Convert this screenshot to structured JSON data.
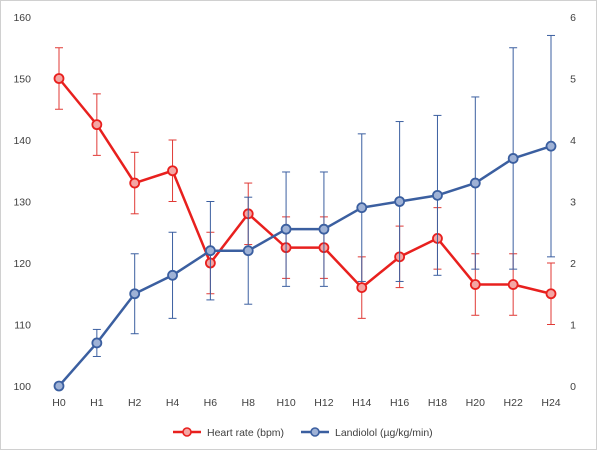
{
  "chart_data": {
    "type": "line",
    "categories": [
      "H0",
      "H1",
      "H2",
      "H4",
      "H6",
      "H8",
      "H10",
      "H12",
      "H14",
      "H16",
      "H18",
      "H20",
      "H22",
      "H24"
    ],
    "y_left": {
      "min": 100,
      "max": 160,
      "ticks": [
        100,
        110,
        120,
        130,
        140,
        150,
        160
      ]
    },
    "y_right": {
      "min": 0,
      "max": 6,
      "ticks": [
        0,
        1,
        2,
        3,
        4,
        5,
        6
      ]
    },
    "grid": false,
    "legend_position": "bottom",
    "series": [
      {
        "name": "Heart rate (bpm)",
        "axis": "left",
        "color": "#e8201e",
        "values": [
          150,
          142.5,
          133,
          135,
          120,
          128,
          122.5,
          122.5,
          116,
          121,
          124,
          116.5,
          116.5,
          115
        ],
        "errors": [
          5,
          5,
          5,
          5,
          5,
          5,
          5,
          5,
          5,
          5,
          5,
          5,
          5,
          5
        ]
      },
      {
        "name": "Landiolol (µg/kg/min)",
        "axis": "right",
        "color": "#3b5fa0",
        "values": [
          0,
          0.7,
          1.5,
          1.8,
          2.2,
          2.2,
          2.55,
          2.55,
          2.9,
          3.0,
          3.1,
          3.3,
          3.7,
          3.9
        ],
        "errors": [
          0,
          0.22,
          0.65,
          0.7,
          0.8,
          0.87,
          0.93,
          0.93,
          1.2,
          1.3,
          1.3,
          1.4,
          1.8,
          1.8
        ]
      }
    ]
  }
}
